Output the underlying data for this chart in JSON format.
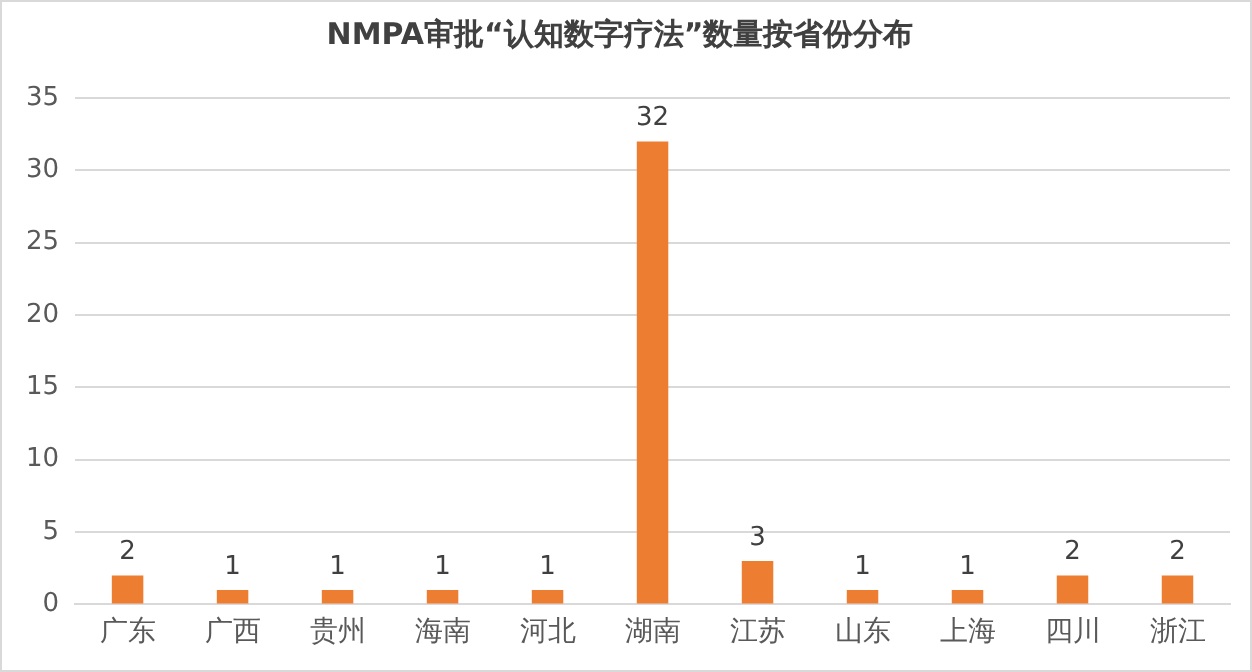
{
  "chart_data": {
    "type": "bar",
    "title": "NMPA审批“认知数字疗法”数量按省份分布",
    "categories": [
      "广东",
      "广西",
      "贵州",
      "海南",
      "河北",
      "湖南",
      "江苏",
      "山东",
      "上海",
      "四川",
      "浙江"
    ],
    "values": [
      2,
      1,
      1,
      1,
      1,
      32,
      3,
      1,
      1,
      2,
      2
    ],
    "color": "#ed7d31",
    "ylim": [
      0,
      35
    ],
    "yticks": [
      0,
      5,
      10,
      15,
      20,
      25,
      30,
      35
    ],
    "grid": "y",
    "data_labels": true,
    "legend": false
  }
}
